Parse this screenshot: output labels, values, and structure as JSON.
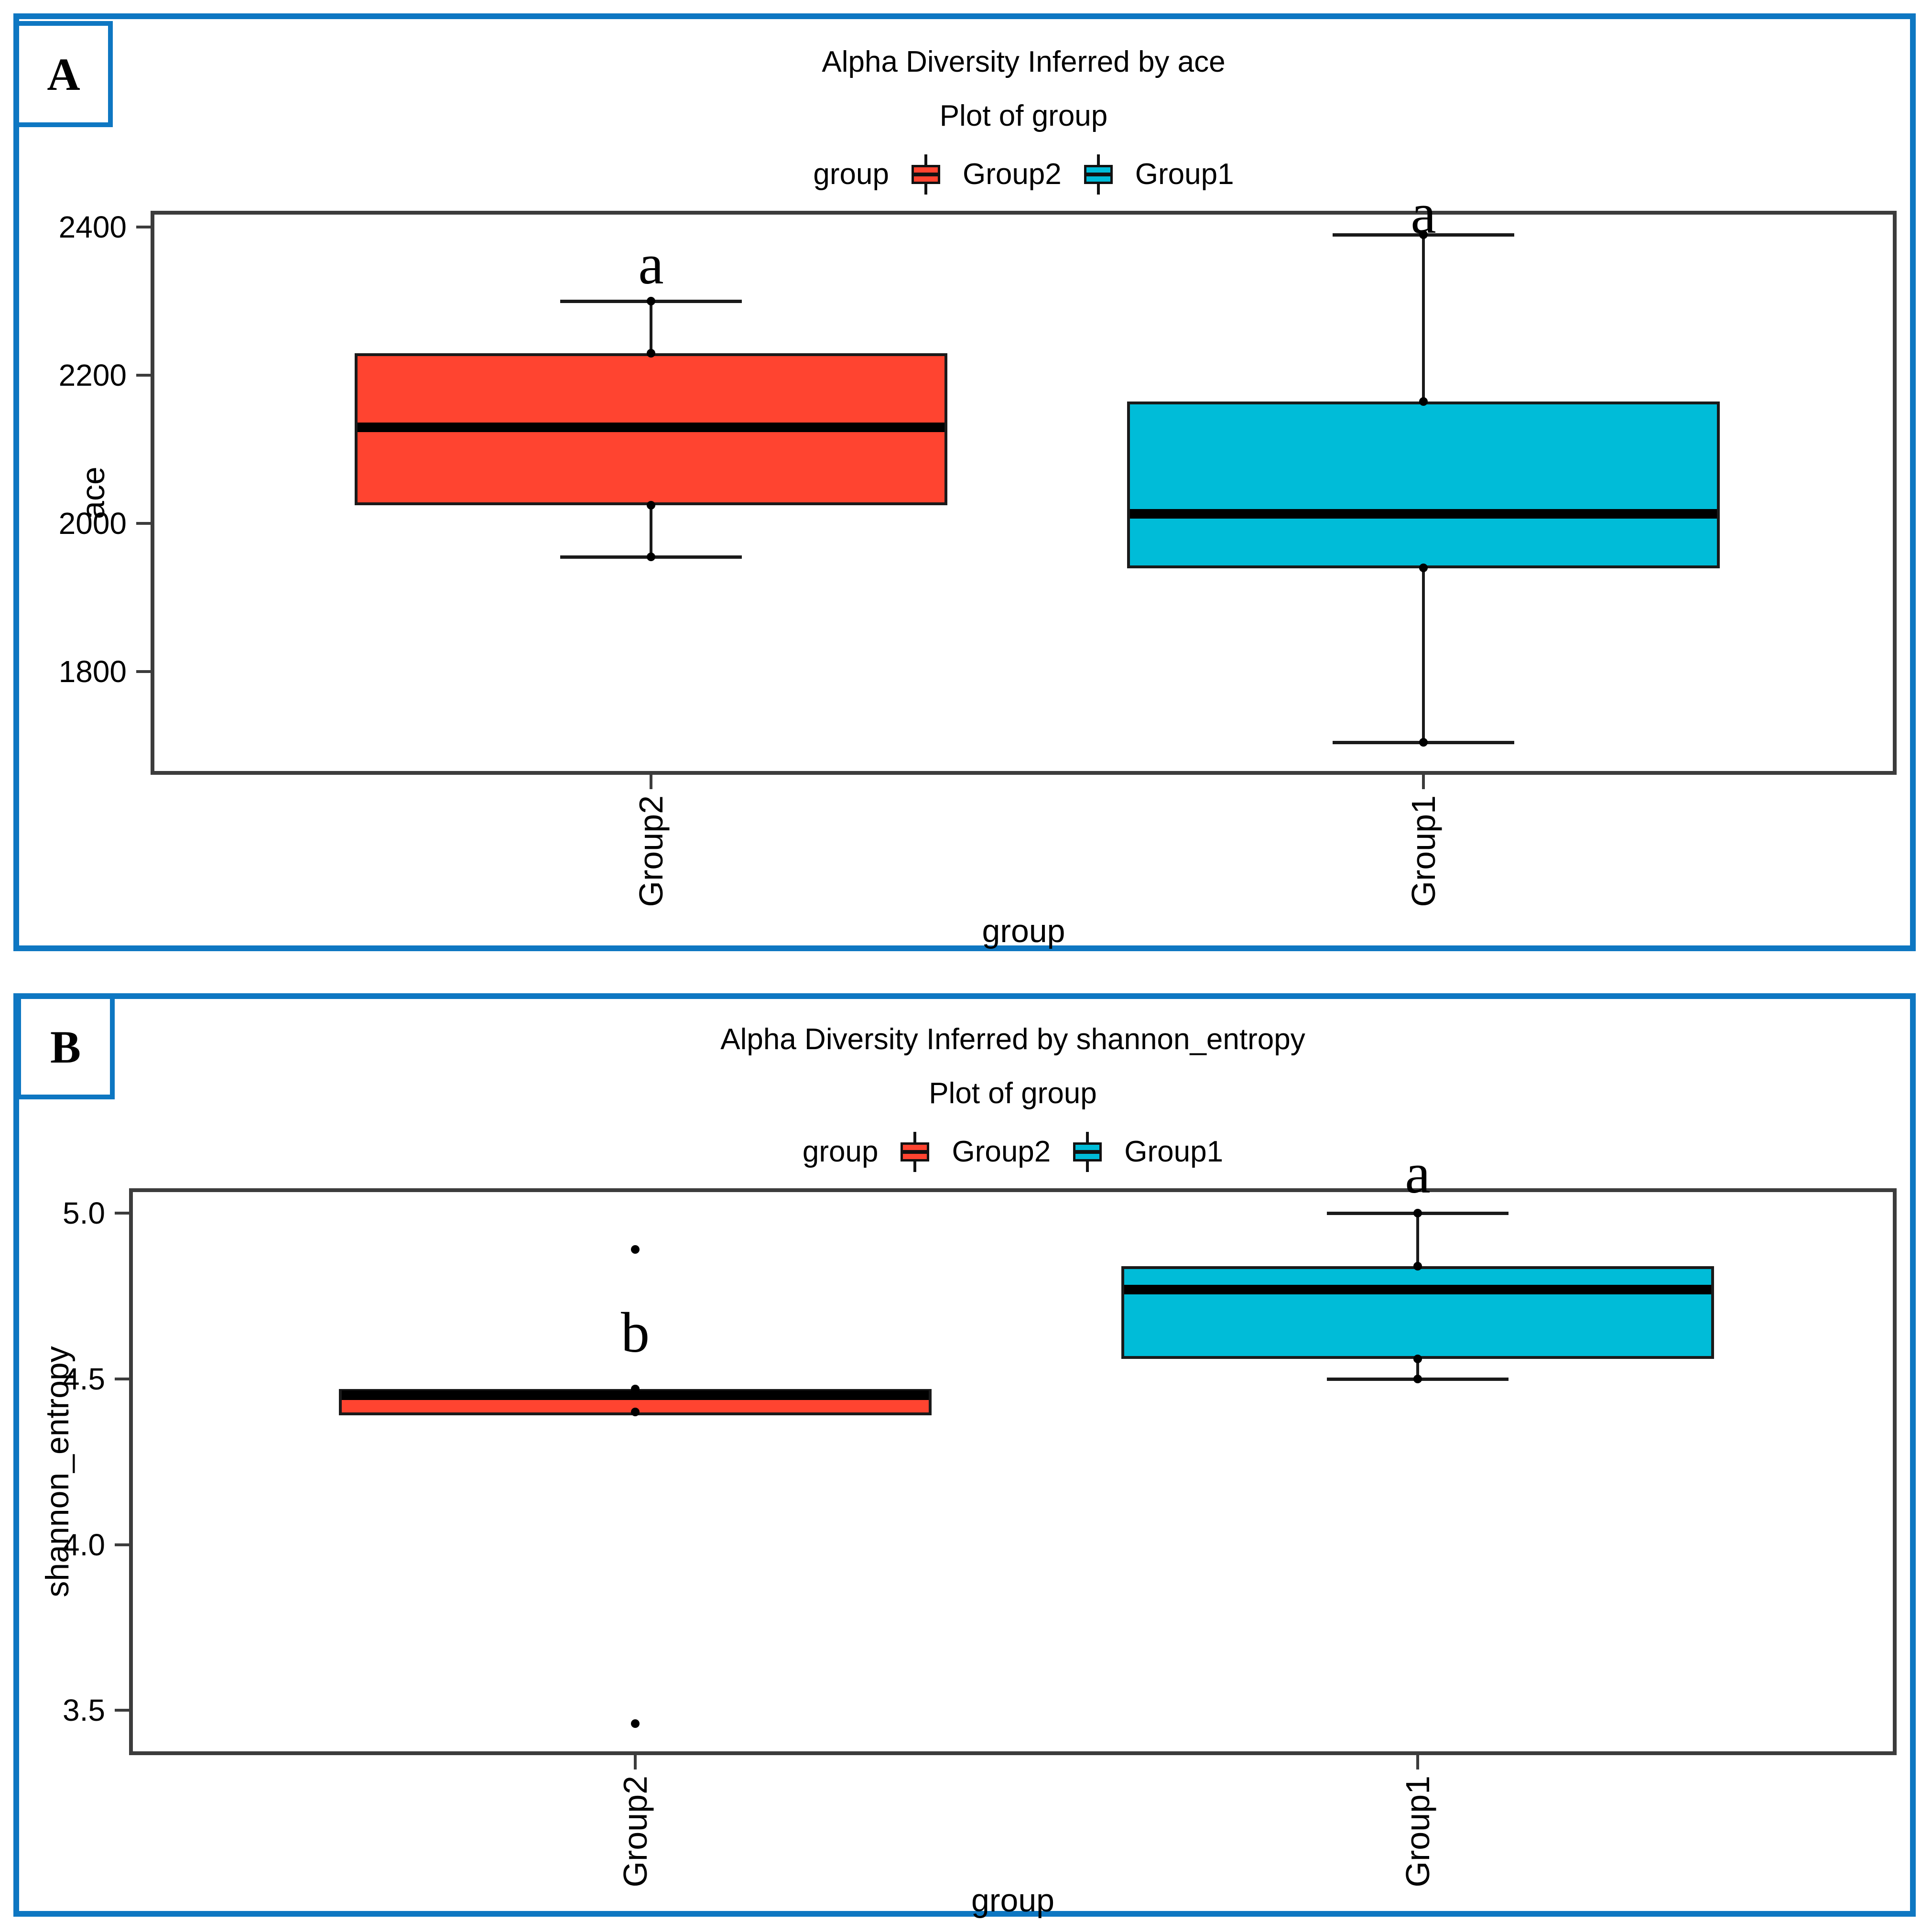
{
  "panel_labels": [
    "A",
    "B"
  ],
  "colors": {
    "frame_blue": "#0E77C2",
    "plot_border_gray": "#3C3C3C",
    "box_stroke": "#1A1A1A",
    "group2_red": "#FF4430",
    "group1_cyan": "#00BCD8"
  },
  "chart_data": [
    {
      "type": "boxplot",
      "title": "Alpha Diversity Inferred by ace",
      "subtitle": "Plot of group",
      "legend_title": "group",
      "legend_position": "top",
      "legend": [
        {
          "label": "Group2",
          "color": "#FF4430"
        },
        {
          "label": "Group1",
          "color": "#00BCD8"
        }
      ],
      "xlabel": "group",
      "ylabel": "ace",
      "ylim": [
        1661,
        2422
      ],
      "grid": false,
      "yticks": [
        {
          "label": "2400",
          "value": 2400
        },
        {
          "label": "2200",
          "value": 2200
        },
        {
          "label": "2000",
          "value": 2000
        },
        {
          "label": "1800",
          "value": 1800
        }
      ],
      "series": [
        {
          "name": "Group2",
          "color": "#FF4430",
          "sig": {
            "label": "a",
            "y": 2350
          },
          "stats": {
            "whisker_low": 1955,
            "q1": 2025,
            "median": 2130,
            "q3": 2230,
            "whisker_high": 2300
          },
          "points": [
            2300,
            2230,
            2130,
            2025,
            1955
          ],
          "outliers": []
        },
        {
          "name": "Group1",
          "color": "#00BCD8",
          "sig": {
            "label": "a",
            "y": 2418
          },
          "stats": {
            "whisker_low": 1705,
            "q1": 1940,
            "median": 2013,
            "q3": 2165,
            "whisker_high": 2390
          },
          "points": [
            2390,
            2165,
            2013,
            1940,
            1705
          ],
          "outliers": []
        }
      ]
    },
    {
      "type": "boxplot",
      "title": "Alpha Diversity Inferred by shannon_entropy",
      "subtitle": "Plot of group",
      "legend_title": "group",
      "legend_position": "top",
      "legend": [
        {
          "label": "Group2",
          "color": "#FF4430"
        },
        {
          "label": "Group1",
          "color": "#00BCD8"
        }
      ],
      "xlabel": "group",
      "ylabel": "shannon_entropy",
      "ylim": [
        3.365,
        5.075
      ],
      "grid": false,
      "yticks": [
        {
          "label": "5.0",
          "value": 5.0
        },
        {
          "label": "4.5",
          "value": 4.5
        },
        {
          "label": "4.0",
          "value": 4.0
        },
        {
          "label": "3.5",
          "value": 3.5
        }
      ],
      "series": [
        {
          "name": "Group2",
          "color": "#FF4430",
          "sig": {
            "label": "b",
            "y": 4.64
          },
          "stats": {
            "whisker_low": 4.39,
            "q1": 4.39,
            "median": 4.45,
            "q3": 4.47,
            "whisker_high": 4.47
          },
          "points": [
            4.47,
            4.45,
            4.4
          ],
          "outliers": [
            4.89,
            3.46
          ]
        },
        {
          "name": "Group1",
          "color": "#00BCD8",
          "sig": {
            "label": "a",
            "y": 5.12
          },
          "stats": {
            "whisker_low": 4.5,
            "q1": 4.56,
            "median": 4.77,
            "q3": 4.84,
            "whisker_high": 5.0
          },
          "points": [
            5.0,
            4.84,
            4.77,
            4.56,
            4.5
          ],
          "outliers": []
        }
      ]
    }
  ]
}
